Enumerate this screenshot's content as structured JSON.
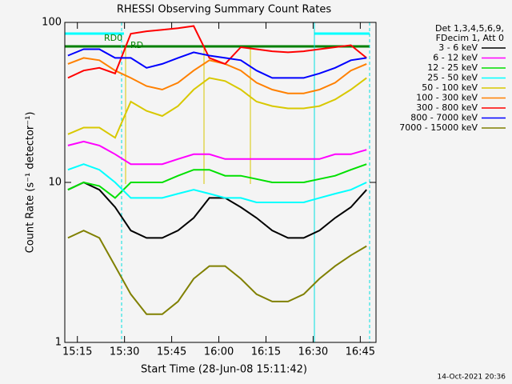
{
  "chart_data": {
    "type": "line",
    "title": "RHESSI Observing Summary Count Rates",
    "x_label": "Start Time (28-Jun-08 15:11:42)",
    "y_label": "Count Rate (s⁻¹ detector⁻¹)",
    "legend_header": [
      "Det 1,3,4,5,6,9,",
      "FDecim 1, Att 0"
    ],
    "annotations": [
      "RD0",
      "RD"
    ],
    "timestamp": "14-Oct-2021 20:36",
    "log_y": true,
    "legend": "right",
    "xlim": [
      "15:11",
      "16:50"
    ],
    "xticks": [
      "15:15",
      "15:30",
      "15:45",
      "16:00",
      "16:15",
      "16:30",
      "16:45"
    ],
    "ylim": [
      1,
      100
    ],
    "yticks": [
      1,
      10,
      100
    ],
    "x": [
      "15:12",
      "15:17",
      "15:22",
      "15:27",
      "15:32",
      "15:37",
      "15:42",
      "15:47",
      "15:52",
      "15:57",
      "16:02",
      "16:07",
      "16:12",
      "16:17",
      "16:22",
      "16:27",
      "16:32",
      "16:37",
      "16:42",
      "16:47"
    ],
    "series": [
      {
        "name": "3 - 6 keV",
        "color": "#000000",
        "values": [
          9,
          10,
          9,
          7,
          5,
          4.5,
          4.5,
          5,
          6,
          8,
          8,
          7,
          6,
          5,
          4.5,
          4.5,
          5,
          6,
          7,
          9
        ]
      },
      {
        "name": "6 - 12 keV",
        "color": "#ff00ff",
        "values": [
          17,
          18,
          17,
          15,
          13,
          13,
          13,
          14,
          15,
          15,
          14,
          14,
          14,
          14,
          14,
          14,
          14,
          15,
          15,
          16
        ]
      },
      {
        "name": "12 - 25 keV",
        "color": "#00e000",
        "values": [
          9,
          10,
          9.5,
          8,
          10,
          10,
          10,
          11,
          12,
          12,
          11,
          11,
          10.5,
          10,
          10,
          10,
          10.5,
          11,
          12,
          13
        ]
      },
      {
        "name": "25 - 50 keV",
        "color": "#00ffff",
        "values": [
          12,
          13,
          12,
          10,
          8,
          8,
          8,
          8.5,
          9,
          8.5,
          8,
          8,
          7.5,
          7.5,
          7.5,
          7.5,
          8,
          8.5,
          9,
          10
        ]
      },
      {
        "name": "50 - 100 keV",
        "color": "#d8c800",
        "values": [
          20,
          22,
          22,
          19,
          32,
          28,
          26,
          30,
          38,
          45,
          43,
          38,
          32,
          30,
          29,
          29,
          30,
          33,
          38,
          45
        ]
      },
      {
        "name": "100 - 300 keV",
        "color": "#ff8000",
        "values": [
          55,
          60,
          58,
          50,
          45,
          40,
          38,
          42,
          50,
          58,
          55,
          50,
          42,
          38,
          36,
          36,
          38,
          42,
          50,
          55
        ]
      },
      {
        "name": "300 - 800 keV",
        "color": "#ff0000",
        "values": [
          45,
          50,
          52,
          48,
          85,
          88,
          90,
          92,
          95,
          60,
          55,
          70,
          68,
          66,
          65,
          66,
          68,
          70,
          72,
          60
        ]
      },
      {
        "name": "800 - 7000 keV",
        "color": "#0000ff",
        "values": [
          62,
          68,
          68,
          60,
          60,
          52,
          55,
          60,
          65,
          62,
          60,
          58,
          50,
          45,
          45,
          45,
          48,
          52,
          58,
          60
        ]
      },
      {
        "name": "7000 - 15000 keV",
        "color": "#808000",
        "values": [
          4.5,
          5,
          4.5,
          3,
          2,
          1.5,
          1.5,
          1.8,
          2.5,
          3,
          3,
          2.5,
          2,
          1.8,
          1.8,
          2,
          2.5,
          3,
          3.5,
          4
        ]
      }
    ]
  }
}
